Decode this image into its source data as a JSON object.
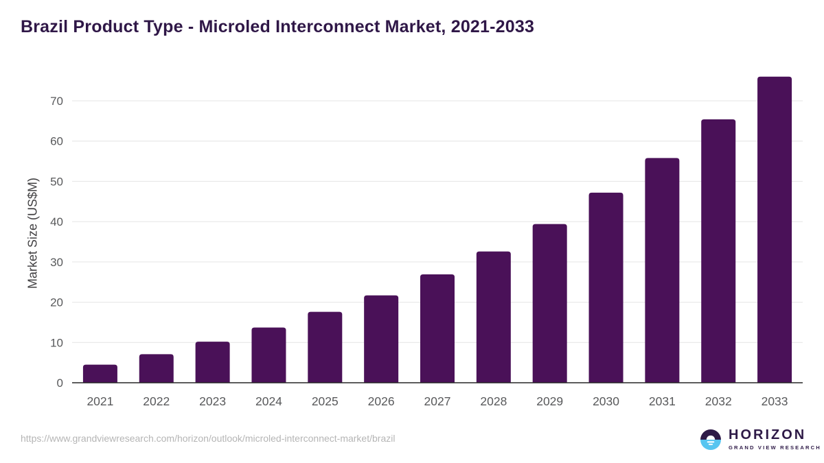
{
  "header": {
    "title": "Brazil Product Type - Microled Interconnect Market, 2021-2033"
  },
  "chart_data": {
    "type": "bar",
    "title": "Brazil Product Type - Microled Interconnect Market, 2021-2033",
    "xlabel": "",
    "ylabel": "Market Size (US$M)",
    "categories": [
      "2021",
      "2022",
      "2023",
      "2024",
      "2025",
      "2026",
      "2027",
      "2028",
      "2029",
      "2030",
      "2031",
      "2032",
      "2033"
    ],
    "values": [
      4.5,
      7.1,
      10.2,
      13.7,
      17.6,
      21.7,
      26.9,
      32.6,
      39.4,
      47.2,
      55.8,
      65.4,
      76.0
    ],
    "ylim": [
      0,
      78
    ],
    "yticks": [
      0,
      10,
      20,
      30,
      40,
      50,
      60,
      70
    ],
    "grid": true,
    "legend": false,
    "bar_color": "#4a1158"
  },
  "footer": {
    "source_url": "https://www.grandviewresearch.com/horizon/outlook/microled-interconnect-market/brazil",
    "logo": {
      "title": "HORIZON",
      "subtitle": "GRAND VIEW RESEARCH"
    }
  },
  "colors": {
    "bar": "#4a1158",
    "title_text": "#2f1747",
    "axis_text": "#58595b",
    "ylabel_text": "#414042",
    "gridline": "#e4e4e4",
    "axis_line": "#262626",
    "source_text": "#b5b5b5",
    "logo_dark": "#2e1a47",
    "logo_blue": "#57c5f0"
  }
}
